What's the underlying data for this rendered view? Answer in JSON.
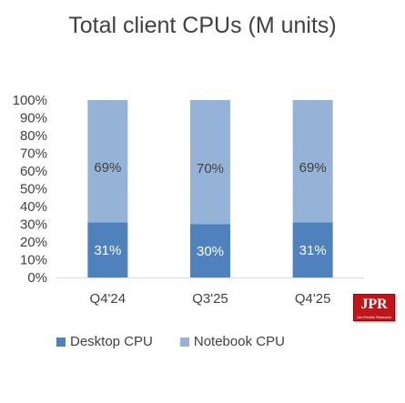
{
  "logo": {
    "text": "JPR",
    "subtext": "Jon Peddie Research"
  },
  "colors": {
    "desktop": "#4f81bd",
    "notebook": "#95b3d7",
    "desktop_label": "#ffffff",
    "notebook_label": "#404040",
    "grid": "#d9d9d9"
  },
  "chart_data": {
    "type": "bar",
    "stacked": true,
    "title": "Total client CPUs (M units)",
    "categories": [
      "Q4'24",
      "Q3'25",
      "Q4'25"
    ],
    "series": [
      {
        "name": "Desktop CPU",
        "values": [
          31,
          30,
          31
        ],
        "labels": [
          "31%",
          "30%",
          "31%"
        ]
      },
      {
        "name": "Notebook CPU",
        "values": [
          69,
          70,
          69
        ],
        "labels": [
          "69%",
          "70%",
          "69%"
        ]
      }
    ],
    "ylim": [
      0,
      100
    ],
    "yticks": [
      "0%",
      "10%",
      "20%",
      "30%",
      "40%",
      "50%",
      "60%",
      "70%",
      "80%",
      "90%",
      "100%"
    ],
    "grid": false,
    "legend": "bottom"
  }
}
